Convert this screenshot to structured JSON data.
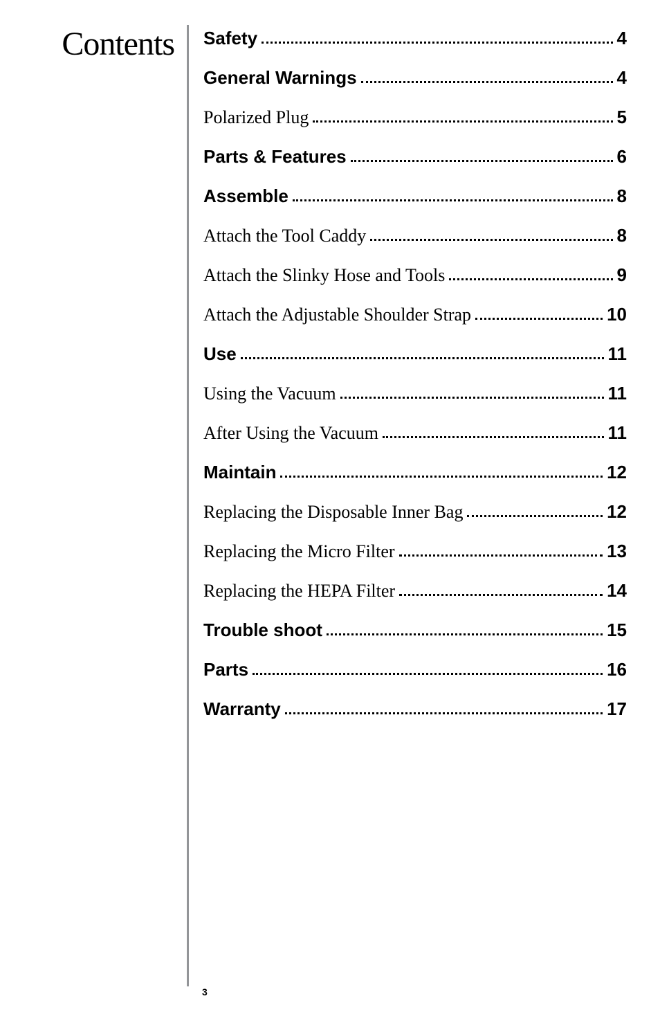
{
  "sidebar_title": "Contents",
  "toc": [
    {
      "label": "Safety",
      "page": "4",
      "bold": true
    },
    {
      "label": "General Warnings",
      "page": "4",
      "bold": true
    },
    {
      "label": "Polarized Plug",
      "page": "5",
      "bold": false
    },
    {
      "label": "Parts & Features",
      "page": "6",
      "bold": true
    },
    {
      "label": "Assemble",
      "page": "8",
      "bold": true
    },
    {
      "label": "Attach the Tool Caddy",
      "page": "8",
      "bold": false
    },
    {
      "label": "Attach the Slinky Hose and Tools",
      "page": "9",
      "bold": false
    },
    {
      "label": "Attach the Adjustable Shoulder Strap",
      "page": "10",
      "bold": false
    },
    {
      "label": "Use",
      "page": "11",
      "bold": true
    },
    {
      "label": "Using the Vacuum",
      "page": "11",
      "bold": false
    },
    {
      "label": "After Using the Vacuum",
      "page": "11",
      "bold": false
    },
    {
      "label": "Maintain",
      "page": "12",
      "bold": true
    },
    {
      "label": "Replacing the Disposable Inner Bag",
      "page": "12",
      "bold": false
    },
    {
      "label": "Replacing the Micro Filter",
      "page": "13",
      "bold": false
    },
    {
      "label": "Replacing the HEPA Filter",
      "page": "14",
      "bold": false
    },
    {
      "label": "Trouble shoot",
      "page": "15",
      "bold": true
    },
    {
      "label": "Parts",
      "page": "16",
      "bold": true
    },
    {
      "label": "Warranty",
      "page": "17",
      "bold": true
    }
  ],
  "page_number": "3"
}
